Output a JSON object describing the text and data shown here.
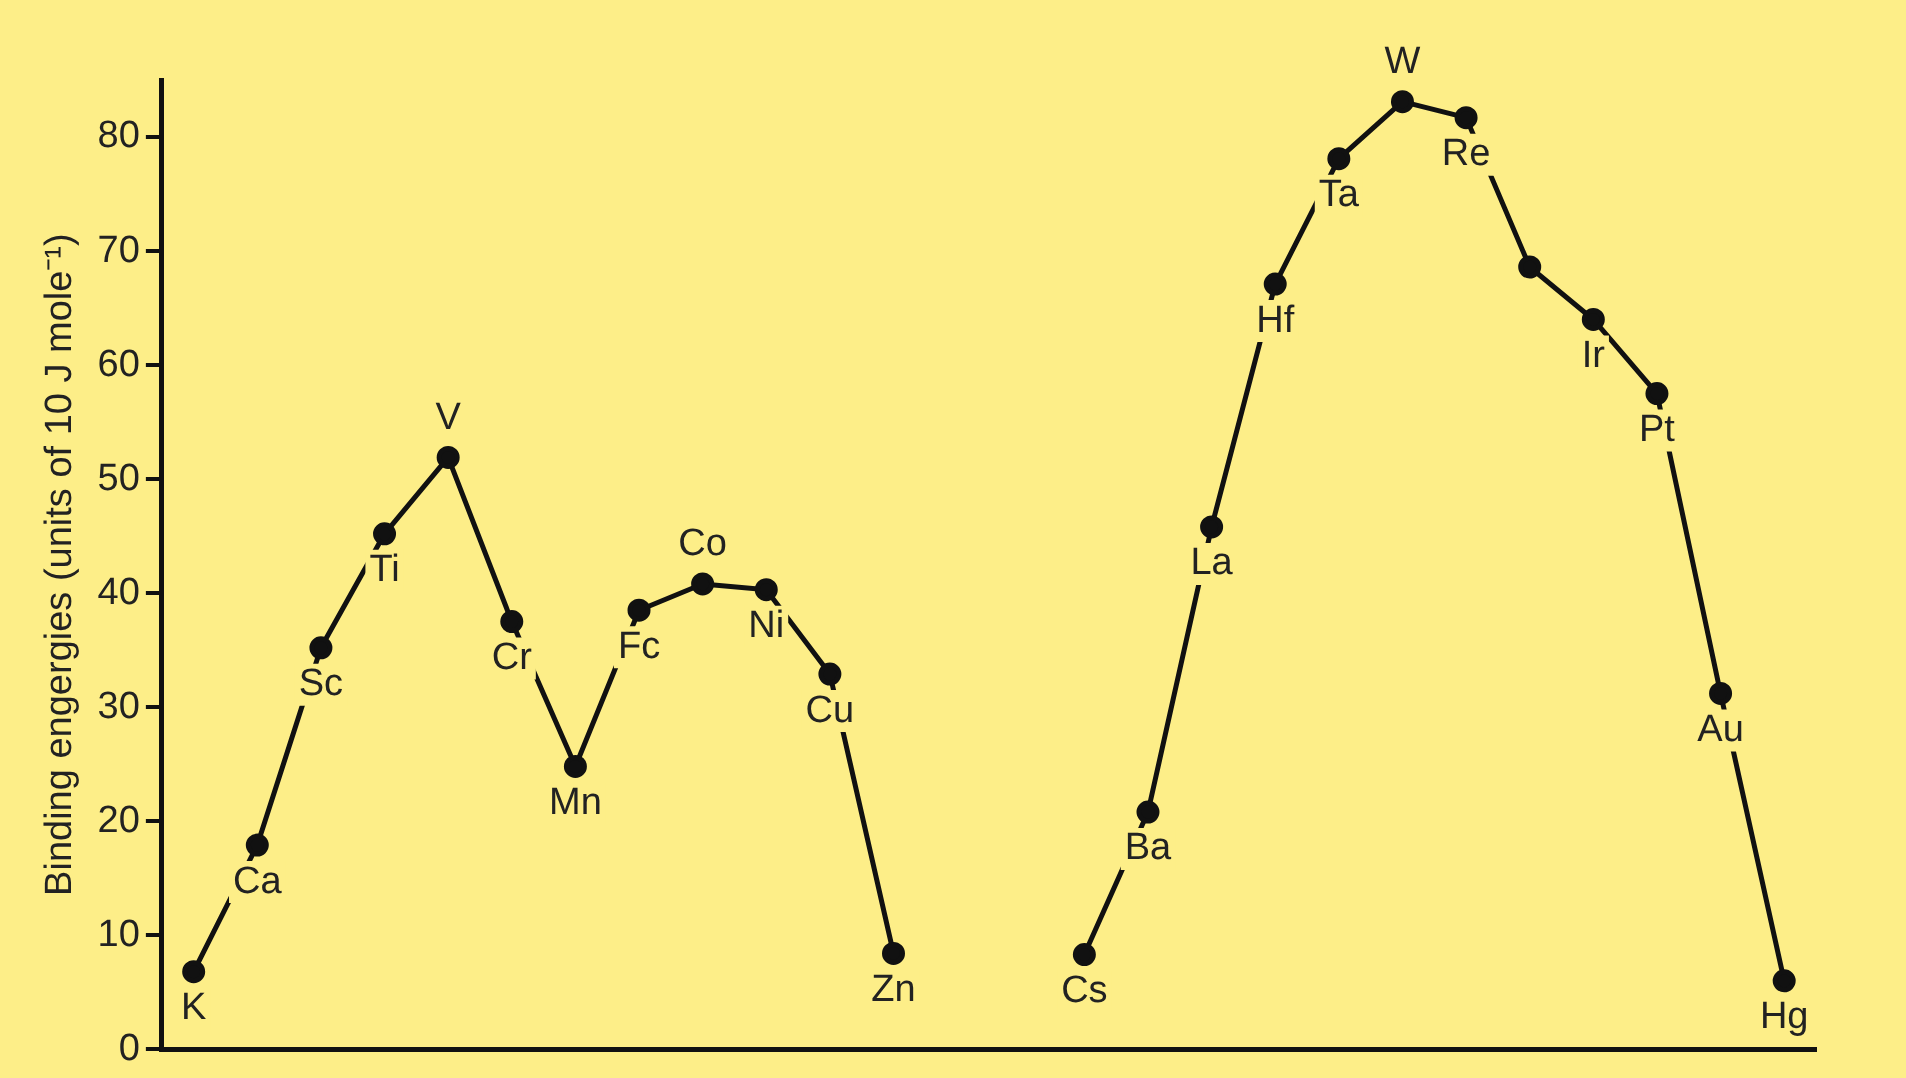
{
  "chart_data": {
    "type": "line",
    "ylabel": "Binding engergies (units of 10 J mole⁻¹)",
    "categories": [
      null,
      null,
      null,
      null,
      null,
      null,
      null,
      null,
      null,
      null,
      null,
      null,
      null,
      null,
      null,
      null,
      null,
      null,
      null,
      null,
      null,
      null,
      null,
      null,
      null,
      null
    ],
    "series": [
      {
        "color": "#111111",
        "values": [
          6.8,
          17.9,
          35.2,
          45.2,
          51.9,
          37.5,
          24.8,
          38.5,
          40.8,
          40.3,
          32.9,
          8.4,
          null,
          null,
          null,
          null,
          null,
          null,
          null,
          null,
          null,
          null,
          null,
          null,
          null,
          null
        ]
      },
      {
        "color": "#111111",
        "values": [
          null,
          null,
          null,
          null,
          null,
          null,
          null,
          null,
          null,
          null,
          null,
          null,
          null,
          null,
          8.3,
          20.8,
          45.8,
          67.1,
          78.1,
          83.1,
          81.7,
          68.6,
          64.0,
          57.5,
          31.2,
          6.0
        ]
      }
    ],
    "annotations": [
      {
        "text": "K",
        "y": 6.8
      },
      {
        "text": "Ca",
        "y": 17.9
      },
      {
        "text": "Sc",
        "y": 35.2
      },
      {
        "text": "Ti",
        "y": 45.2
      },
      {
        "text": "V",
        "y": 51.9
      },
      {
        "text": "Cr",
        "y": 37.5
      },
      {
        "text": "Mn",
        "y": 24.8
      },
      {
        "text": "Fc",
        "y": 38.5
      },
      {
        "text": "Co",
        "y": 40.8
      },
      {
        "text": "Ni",
        "y": 40.3
      },
      {
        "text": "Cu",
        "y": 32.9
      },
      {
        "text": "Zn",
        "y": 8.4
      },
      {
        "text": "Cs",
        "y": 8.3
      },
      {
        "text": "Ba",
        "y": 20.8
      },
      {
        "text": "La",
        "y": 45.8
      },
      {
        "text": "Hf",
        "y": 67.1
      },
      {
        "text": "Ta",
        "y": 78.1
      },
      {
        "text": "W",
        "y": 83.1
      },
      {
        "text": "Re",
        "y": 81.7
      },
      {
        "text": "Ir",
        "y": 64.0
      },
      {
        "text": "Pt",
        "y": 57.5
      },
      {
        "text": "Au",
        "y": 31.2
      },
      {
        "text": "Hg",
        "y": 6.0
      }
    ],
    "ylim": [
      0,
      85
    ],
    "yticks": [
      0,
      10,
      20,
      30,
      40,
      50,
      60,
      70,
      80
    ],
    "grid": false,
    "legend": false,
    "marker": "circle",
    "line_style": "solid"
  }
}
